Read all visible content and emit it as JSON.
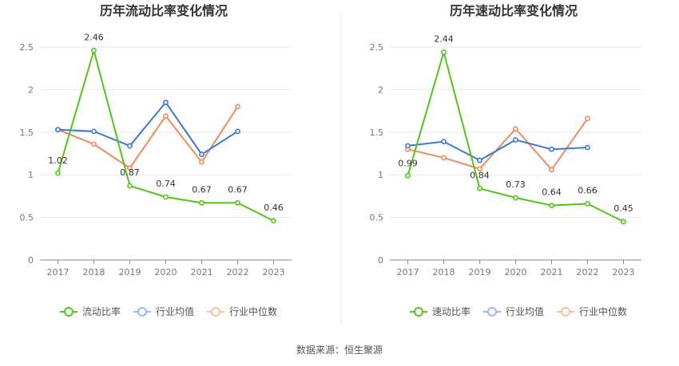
{
  "source": "数据来源：恒生聚源",
  "chart_data": [
    {
      "type": "line",
      "title": "历年流动比率变化情况",
      "categories": [
        "2017",
        "2018",
        "2019",
        "2020",
        "2021",
        "2022",
        "2023"
      ],
      "ylim": [
        0,
        2.5
      ],
      "yticks": [
        "0",
        "0.5",
        "1",
        "1.5",
        "2",
        "2.5"
      ],
      "grid": true,
      "legend": "bottom",
      "series": [
        {
          "name": "流动比率",
          "color": "#52c41a",
          "labels": true,
          "values": [
            1.02,
            2.46,
            0.87,
            0.74,
            0.67,
            0.67,
            0.46
          ],
          "value_labels": [
            "1.02",
            "2.46",
            "0.87",
            "0.74",
            "0.67",
            "0.67",
            "0.46"
          ]
        },
        {
          "name": "行业均值",
          "color": "#3a78d8",
          "labels": false,
          "values": [
            1.53,
            1.51,
            1.34,
            1.85,
            1.24,
            1.51,
            null
          ]
        },
        {
          "name": "行业中位数",
          "color": "#f08a5d",
          "labels": false,
          "values": [
            1.53,
            1.36,
            1.08,
            1.69,
            1.15,
            1.8,
            null
          ]
        }
      ]
    },
    {
      "type": "line",
      "title": "历年速动比率变化情况",
      "categories": [
        "2017",
        "2018",
        "2019",
        "2020",
        "2021",
        "2022",
        "2023"
      ],
      "ylim": [
        0,
        2.5
      ],
      "yticks": [
        "0",
        "0.5",
        "1",
        "1.5",
        "2",
        "2.5"
      ],
      "grid": true,
      "legend": "bottom",
      "series": [
        {
          "name": "速动比率",
          "color": "#52c41a",
          "labels": true,
          "values": [
            0.99,
            2.44,
            0.84,
            0.73,
            0.64,
            0.66,
            0.45
          ],
          "value_labels": [
            "0.99",
            "2.44",
            "0.84",
            "0.73",
            "0.64",
            "0.66",
            "0.45"
          ]
        },
        {
          "name": "行业均值",
          "color": "#3a78d8",
          "labels": false,
          "values": [
            1.34,
            1.39,
            1.17,
            1.41,
            1.3,
            1.32,
            null
          ]
        },
        {
          "name": "行业中位数",
          "color": "#f08a5d",
          "labels": false,
          "values": [
            1.3,
            1.2,
            1.07,
            1.54,
            1.06,
            1.66,
            null
          ]
        }
      ]
    }
  ]
}
